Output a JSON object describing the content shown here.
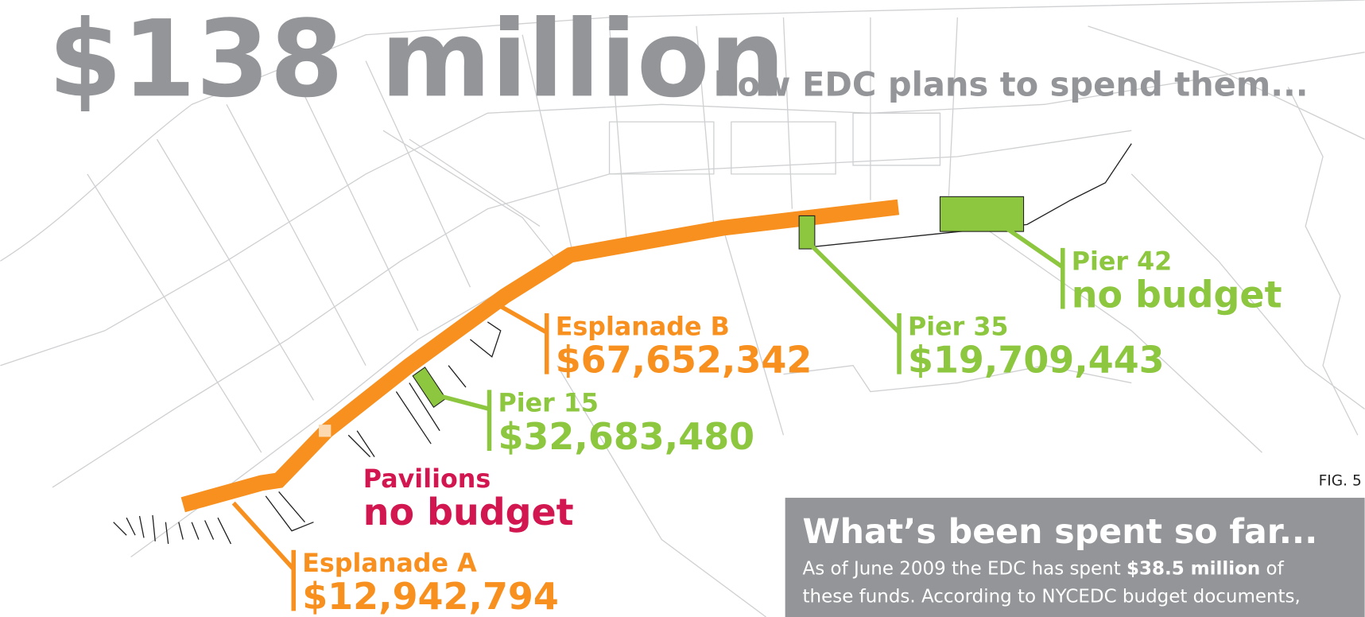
{
  "title": "$138 million",
  "subtitle": "how EDC plans to spend them...",
  "labels": [
    {
      "name": "Esplanade A",
      "amount": "$12,942,794",
      "color": "#f7901e"
    },
    {
      "name": "Esplanade B",
      "amount": "$67,652,342",
      "color": "#f7901e"
    },
    {
      "name": "Pier 15",
      "amount": "$32,683,480",
      "color": "#8dc63f"
    },
    {
      "name": "Pier 35",
      "amount": "$19,709,443",
      "color": "#8dc63f"
    },
    {
      "name": "Pier 42",
      "amount": "no budget",
      "color": "#8dc63f"
    },
    {
      "name": "Pavilions",
      "amount": "no budget",
      "color": "#d2164f"
    }
  ],
  "figure": "FIG. 5",
  "box": {
    "heading": "What’s been spent so far...",
    "line1_before": "As of June 2009 the EDC has spent ",
    "line1_bold": "$38.5 million",
    "line1_after": " of",
    "line2": "these funds. According to NYCEDC budget documents,"
  }
}
